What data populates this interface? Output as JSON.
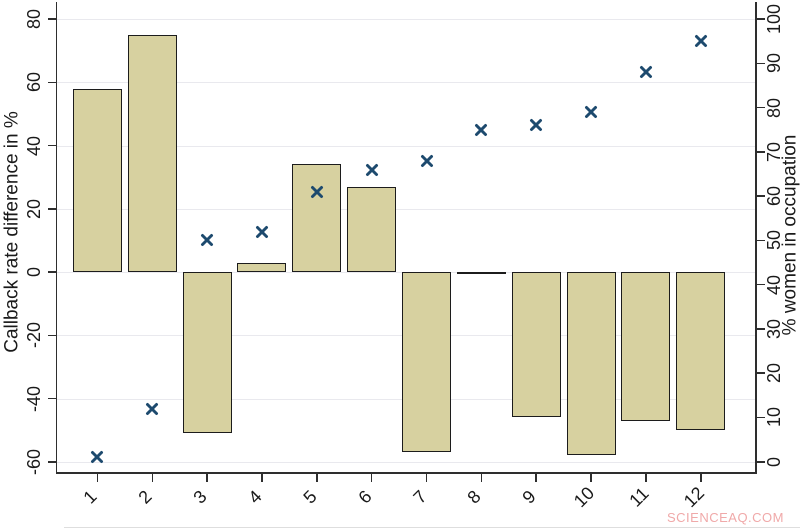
{
  "watermark": "SCIENCEAQ.COM",
  "chart_data": {
    "type": "bar",
    "subtype": "dual-axis bar + scatter (x markers)",
    "title": "",
    "categories": [
      "1",
      "2",
      "3",
      "4",
      "5",
      "6",
      "7",
      "8",
      "9",
      "10",
      "11",
      "12"
    ],
    "series": [
      {
        "name": "Callback rate difference in %",
        "type": "bar",
        "axis": "left",
        "values": [
          58,
          75,
          -51,
          3,
          34,
          27,
          -57,
          -0.5,
          -46,
          -58,
          -47,
          -50
        ]
      },
      {
        "name": "% women in occupation",
        "type": "scatter",
        "marker": "x",
        "axis": "right",
        "values": [
          1,
          12,
          50,
          52,
          61,
          66,
          68,
          75,
          76,
          79,
          88,
          95
        ]
      }
    ],
    "left_axis": {
      "title": "Callback rate difference in %",
      "min": -60,
      "max": 80,
      "ticks": [
        -60,
        -40,
        -20,
        0,
        20,
        40,
        60,
        80
      ]
    },
    "right_axis": {
      "title": "% women in occupation",
      "min": 0,
      "max": 100,
      "ticks": [
        0,
        10,
        20,
        30,
        40,
        50,
        60,
        70,
        80,
        90,
        100
      ]
    },
    "x_axis": {
      "tick_label_angle": 45
    },
    "grid": true,
    "legend": "none",
    "colors": {
      "bar_fill": "#d7d1a0",
      "bar_border": "#1c1c1c",
      "marker": "#1d4a6e",
      "gridline": "#e9e9ee",
      "axis": "#2e2e2e",
      "watermark": "#f0a9a9"
    }
  }
}
